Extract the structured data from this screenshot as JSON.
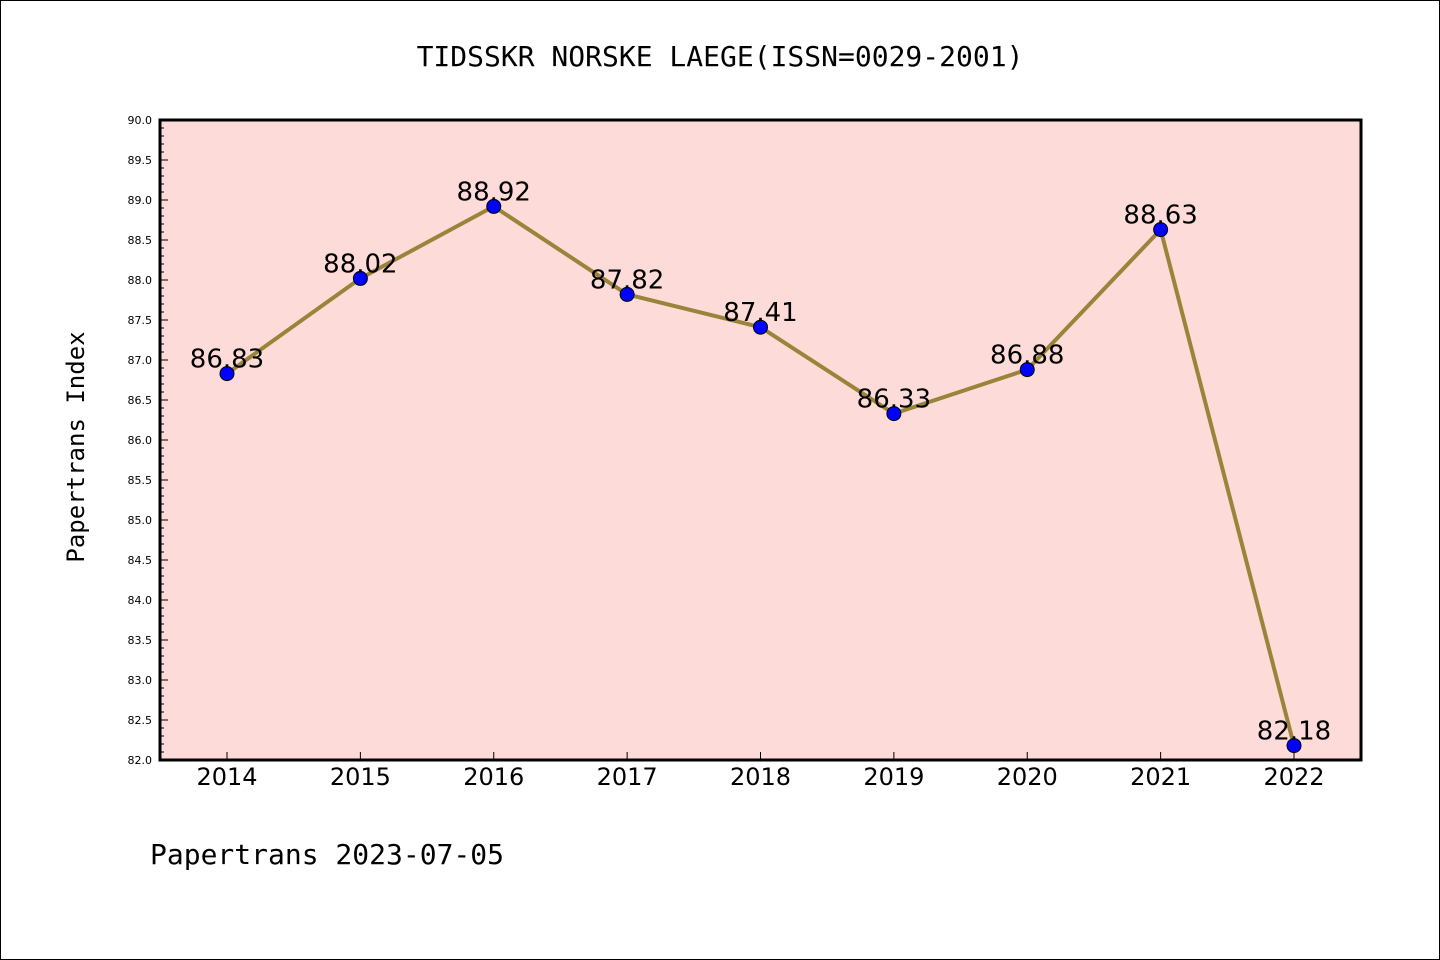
{
  "chart_data": {
    "type": "line",
    "title": "TIDSSKR NORSKE LAEGE(ISSN=0029-2001)",
    "xlabel": "",
    "ylabel": "Papertrans Index",
    "footer": "Papertrans 2023-07-05",
    "categories": [
      "2014",
      "2015",
      "2016",
      "2017",
      "2018",
      "2019",
      "2020",
      "2021",
      "2022"
    ],
    "values": [
      86.83,
      88.02,
      88.92,
      87.82,
      87.41,
      86.33,
      86.88,
      88.63,
      82.18
    ],
    "value_labels": [
      "86.83",
      "88.02",
      "88.92",
      "87.82",
      "87.41",
      "86.33",
      "86.88",
      "88.63",
      "82.18"
    ],
    "y_ticks": [
      "82.0",
      "82.5",
      "83.0",
      "83.5",
      "84.0",
      "84.5",
      "85.0",
      "85.5",
      "86.0",
      "86.5",
      "87.0",
      "87.5",
      "88.0",
      "88.5",
      "89.0",
      "89.5",
      "90.0"
    ],
    "ylim": [
      82.0,
      90.0
    ],
    "grid": false,
    "colors": {
      "plot_background": "#fddbd9",
      "line": "#9a8439",
      "marker": "#0000ff"
    }
  }
}
